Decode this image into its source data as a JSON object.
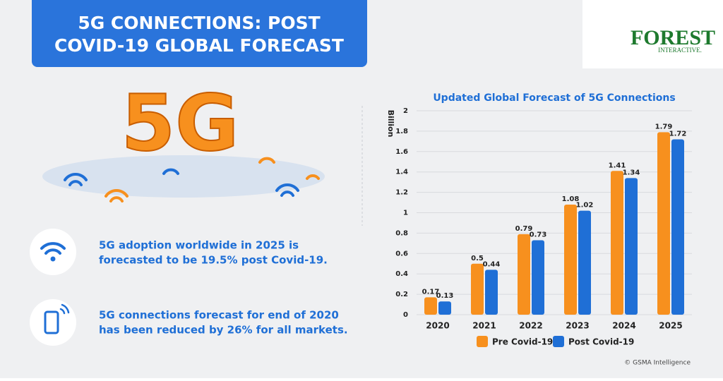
{
  "header": {
    "title_lines": [
      "5G CONNECTIONS: POST",
      "COVID-19 GLOBAL FORECAST"
    ]
  },
  "logo": {
    "main": "FOREST",
    "sub": "INTERACTIVE."
  },
  "hero": {
    "label": "5G"
  },
  "facts": [
    {
      "lines": [
        "5G adoption worldwide in 2025 is",
        "forecasted to be  19.5% post Covid-19."
      ]
    },
    {
      "lines": [
        "5G connections forecast for end of 2020",
        "has been reduced by 26% for all markets."
      ]
    }
  ],
  "chart_data": {
    "type": "bar",
    "title": "Updated Global Forecast of 5G Connections",
    "y_label": "Billion",
    "categories": [
      "2020",
      "2021",
      "2022",
      "2023",
      "2024",
      "2025"
    ],
    "series": [
      {
        "name": "Pre Covid-19",
        "color": "#f7901e",
        "values": [
          0.17,
          0.5,
          0.79,
          1.08,
          1.41,
          1.79
        ]
      },
      {
        "name": "Post Covid-19",
        "color": "#1f6fd6",
        "values": [
          0.13,
          0.44,
          0.73,
          1.02,
          1.34,
          1.72
        ]
      }
    ],
    "ylim": [
      0,
      2
    ],
    "yticks": [
      0,
      0.2,
      0.4,
      0.6,
      0.8,
      1,
      1.2,
      1.4,
      1.6,
      1.8,
      2
    ],
    "grid": true,
    "legend": "bottom"
  },
  "source": "© GSMA Intelligence"
}
